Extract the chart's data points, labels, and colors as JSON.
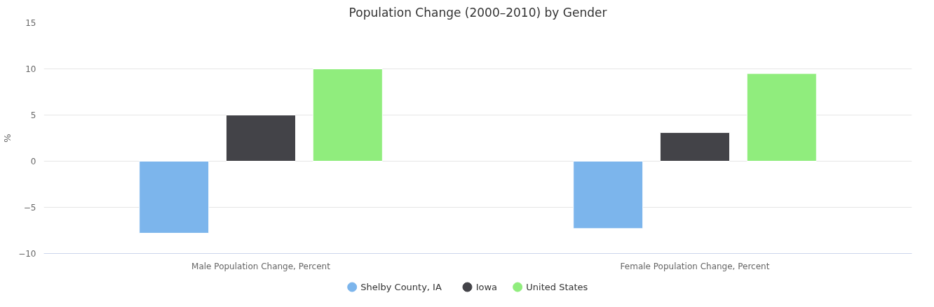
{
  "chart_data": {
    "type": "bar",
    "title": "Population Change (2000–2010) by Gender",
    "ylabel": "%",
    "categories": [
      "Male Population Change, Percent",
      "Female Population Change, Percent"
    ],
    "series": [
      {
        "name": "Shelby County, IA",
        "color": "#7cb5ec",
        "values": [
          -7.8,
          -7.3
        ]
      },
      {
        "name": "Iowa",
        "color": "#434348",
        "values": [
          5.0,
          3.1
        ]
      },
      {
        "name": "United States",
        "color": "#90ed7d",
        "values": [
          10.0,
          9.5
        ]
      }
    ],
    "ylim": [
      -10,
      15
    ],
    "yticks": [
      -10,
      -5,
      0,
      5,
      10,
      15
    ],
    "grid": "y",
    "legend": "bottom"
  }
}
